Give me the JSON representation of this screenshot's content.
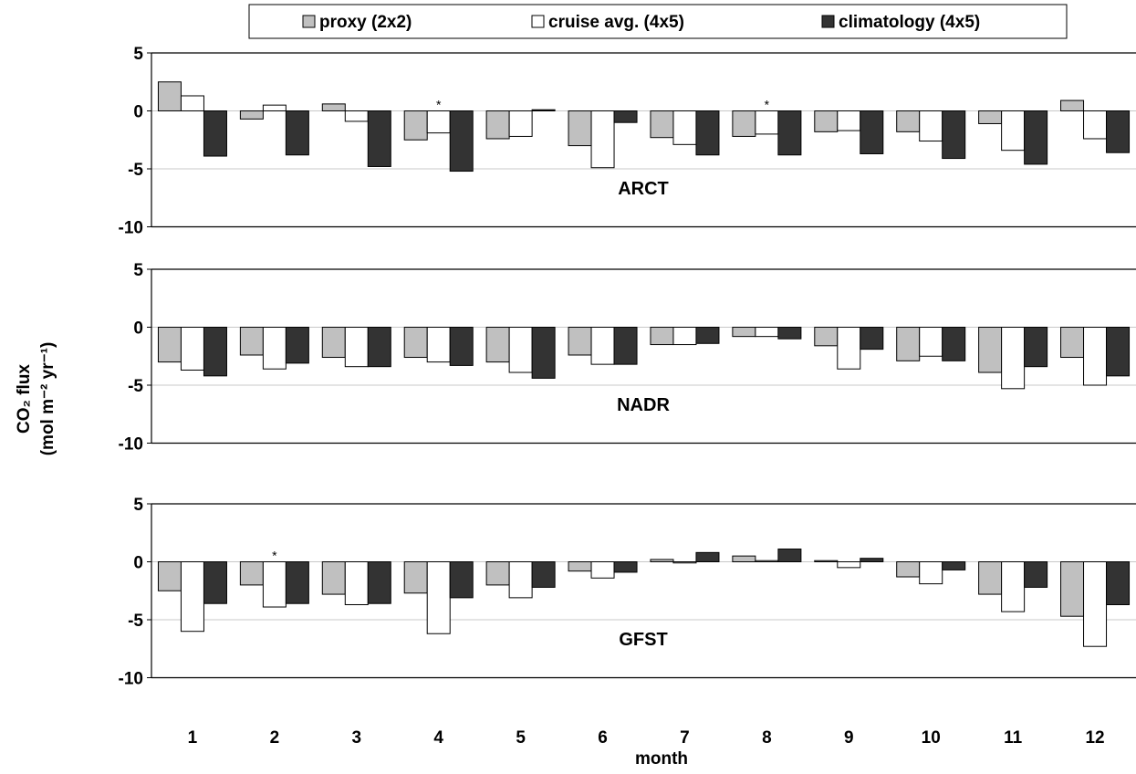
{
  "chart_data": {
    "type": "bar",
    "layout": "three vertically stacked panels sharing the x axis",
    "xlabel": "month",
    "ylabel_line1": "CO₂ flux",
    "ylabel_line2": "(mol m⁻² yr⁻¹)",
    "ylim": [
      -10,
      5
    ],
    "yticks": [
      "5",
      "0",
      "-5",
      "-10"
    ],
    "grid": "horizontal gridlines at 0 and -5",
    "categories": [
      "1",
      "2",
      "3",
      "4",
      "5",
      "6",
      "7",
      "8",
      "9",
      "10",
      "11",
      "12"
    ],
    "legend": {
      "placement": "top",
      "entries": [
        {
          "label": "proxy (2x2)",
          "color": "#c0c0c0"
        },
        {
          "label": "cruise avg. (4x5)",
          "color": "#ffffff"
        },
        {
          "label": "climatology (4x5)",
          "color": "#333333"
        }
      ]
    },
    "series_colors": [
      "#c0c0c0",
      "#ffffff",
      "#333333"
    ],
    "panels": [
      {
        "label": "ARCT",
        "series": [
          {
            "name": "proxy (2x2)",
            "values": [
              2.5,
              -0.7,
              0.6,
              -2.5,
              -2.4,
              -3.0,
              -2.3,
              -2.2,
              -1.8,
              -1.8,
              -1.1,
              0.9
            ]
          },
          {
            "name": "cruise avg. (4x5)",
            "values": [
              1.3,
              0.5,
              -0.9,
              -1.9,
              -2.2,
              -4.9,
              -2.9,
              -2.0,
              -1.7,
              -2.6,
              -3.4,
              -2.4
            ]
          },
          {
            "name": "climatology (4x5)",
            "values": [
              -3.9,
              -3.8,
              -4.8,
              -5.2,
              0.1,
              -1.0,
              -3.8,
              -3.8,
              -3.7,
              -4.1,
              -4.6,
              -3.6
            ]
          }
        ],
        "asterisks": [
          {
            "month": "4",
            "series": "cruise avg. (4x5)",
            "text": "*"
          },
          {
            "month": "8",
            "series": "cruise avg. (4x5)",
            "text": "*"
          }
        ]
      },
      {
        "label": "NADR",
        "series": [
          {
            "name": "proxy (2x2)",
            "values": [
              -3.0,
              -2.4,
              -2.6,
              -2.6,
              -3.0,
              -2.4,
              -1.5,
              -0.8,
              -1.6,
              -2.9,
              -3.9,
              -2.6
            ]
          },
          {
            "name": "cruise avg. (4x5)",
            "values": [
              -3.7,
              -3.6,
              -3.4,
              -3.0,
              -3.9,
              -3.2,
              -1.5,
              -0.8,
              -3.6,
              -2.5,
              -5.3,
              -5.0
            ]
          },
          {
            "name": "climatology (4x5)",
            "values": [
              -4.2,
              -3.1,
              -3.4,
              -3.3,
              -4.4,
              -3.2,
              -1.4,
              -1.0,
              -1.9,
              -2.9,
              -3.4,
              -4.2
            ]
          }
        ],
        "asterisks": []
      },
      {
        "label": "GFST",
        "series": [
          {
            "name": "proxy (2x2)",
            "values": [
              -2.5,
              -2.0,
              -2.8,
              -2.7,
              -2.0,
              -0.8,
              0.2,
              0.5,
              0.1,
              -1.3,
              -2.8,
              -4.7
            ]
          },
          {
            "name": "cruise avg. (4x5)",
            "values": [
              -6.0,
              -3.9,
              -3.7,
              -6.2,
              -3.1,
              -1.4,
              -0.1,
              0.1,
              -0.5,
              -1.9,
              -4.3,
              -7.3
            ]
          },
          {
            "name": "climatology (4x5)",
            "values": [
              -3.6,
              -3.6,
              -3.6,
              -3.1,
              -2.2,
              -0.9,
              0.8,
              1.1,
              0.3,
              -0.7,
              -2.2,
              -3.7
            ]
          }
        ],
        "asterisks": [
          {
            "month": "2",
            "series": "cruise avg. (4x5)",
            "text": "*"
          }
        ]
      }
    ]
  }
}
